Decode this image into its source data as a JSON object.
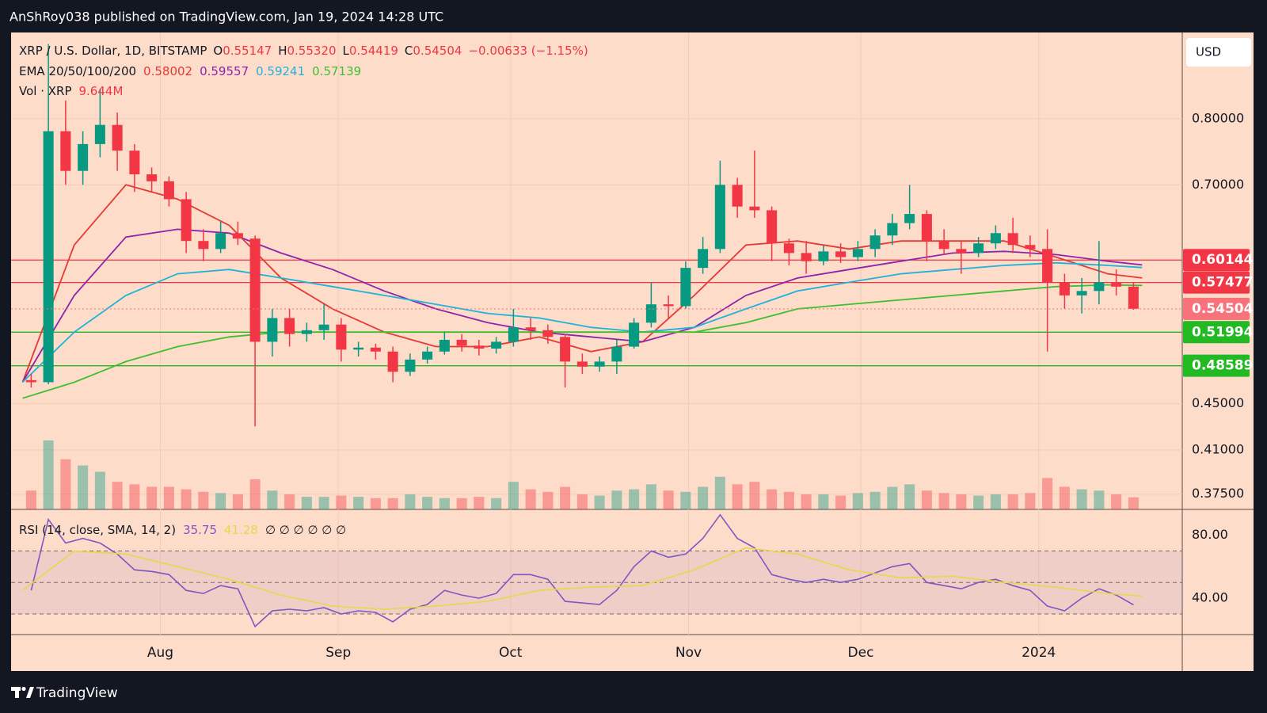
{
  "header": {
    "text": "AnShRoy038 published on TradingView.com, Jan 19, 2024 14:28 UTC"
  },
  "footer": {
    "logo": "TradingView"
  },
  "chart_data": {
    "type": "candlestick",
    "symbol": "XRP / U.S. Dollar, 1D, BITSTAMP",
    "day_ohlc": [
      {
        "key": "O",
        "value": 0.55147
      },
      {
        "key": "H",
        "value": 0.5532,
        "label": "0.55320"
      },
      {
        "key": "L",
        "value": 0.54419
      },
      {
        "key": "C"
      }
    ],
    "change": "−0.00633 (−1.15%)",
    "currency": "USD",
    "log_y": true,
    "grid": true,
    "up_color": "#089981",
    "down_color": "#f23645",
    "xlim": [
      "2023-07-06",
      "2024-01-26"
    ],
    "xticks": [
      {
        "value": "2023-08-01",
        "label": "Aug"
      },
      {
        "value": "2023-09-01",
        "label": "Sep"
      },
      {
        "value": "2023-10-01",
        "label": "Oct"
      },
      {
        "value": "2023-11-01",
        "label": "Nov"
      },
      {
        "value": "2023-12-01",
        "label": "Dec"
      },
      {
        "value": "2024-01-01",
        "label": "2024"
      }
    ],
    "ylim": [
      0.3636,
      0.952
    ],
    "yticks": [
      {
        "value": 0.8,
        "label": "0.80000"
      },
      {
        "value": 0.7,
        "label": "0.70000"
      },
      {
        "value": 0.45,
        "label": "0.45000"
      },
      {
        "value": 0.41,
        "label": "0.41000"
      },
      {
        "value": 0.375,
        "label": "0.37500"
      }
    ],
    "x": [
      "2023-07-08",
      "2023-07-11",
      "2023-07-14",
      "2023-07-17",
      "2023-07-20",
      "2023-07-23",
      "2023-07-26",
      "2023-07-29",
      "2023-08-01",
      "2023-08-04",
      "2023-08-07",
      "2023-08-10",
      "2023-08-13",
      "2023-08-16",
      "2023-08-19",
      "2023-08-22",
      "2023-08-25",
      "2023-08-28",
      "2023-08-31",
      "2023-09-03",
      "2023-09-06",
      "2023-09-09",
      "2023-09-12",
      "2023-09-15",
      "2023-09-18",
      "2023-09-21",
      "2023-09-24",
      "2023-09-27",
      "2023-09-30",
      "2023-10-03",
      "2023-10-06",
      "2023-10-09",
      "2023-10-12",
      "2023-10-15",
      "2023-10-18",
      "2023-10-21",
      "2023-10-24",
      "2023-10-27",
      "2023-10-30",
      "2023-11-02",
      "2023-11-05",
      "2023-11-08",
      "2023-11-11",
      "2023-11-14",
      "2023-11-17",
      "2023-11-20",
      "2023-11-23",
      "2023-11-26",
      "2023-11-29",
      "2023-12-02",
      "2023-12-05",
      "2023-12-08",
      "2023-12-11",
      "2023-12-14",
      "2023-12-17",
      "2023-12-20",
      "2023-12-23",
      "2023-12-26",
      "2023-12-29",
      "2024-01-01",
      "2024-01-04",
      "2024-01-07",
      "2024-01-10",
      "2024-01-13",
      "2024-01-16"
    ],
    "ohlc": [
      [
        0.472,
        0.478,
        0.465,
        0.47
      ],
      [
        0.47,
        0.93,
        0.468,
        0.78
      ],
      [
        0.78,
        0.83,
        0.7,
        0.72
      ],
      [
        0.72,
        0.78,
        0.7,
        0.76
      ],
      [
        0.76,
        0.85,
        0.74,
        0.79
      ],
      [
        0.79,
        0.81,
        0.72,
        0.75
      ],
      [
        0.75,
        0.76,
        0.69,
        0.715
      ],
      [
        0.715,
        0.725,
        0.69,
        0.705
      ],
      [
        0.705,
        0.712,
        0.67,
        0.68
      ],
      [
        0.68,
        0.69,
        0.61,
        0.625
      ],
      [
        0.625,
        0.64,
        0.6,
        0.615
      ],
      [
        0.615,
        0.65,
        0.61,
        0.635
      ],
      [
        0.635,
        0.65,
        0.62,
        0.628
      ],
      [
        0.628,
        0.632,
        0.43,
        0.51
      ],
      [
        0.51,
        0.545,
        0.495,
        0.535
      ],
      [
        0.535,
        0.545,
        0.505,
        0.518
      ],
      [
        0.518,
        0.53,
        0.51,
        0.522
      ],
      [
        0.522,
        0.55,
        0.512,
        0.528
      ],
      [
        0.528,
        0.535,
        0.49,
        0.502
      ],
      [
        0.502,
        0.51,
        0.495,
        0.504
      ],
      [
        0.504,
        0.508,
        0.492,
        0.5
      ],
      [
        0.5,
        0.505,
        0.47,
        0.48
      ],
      [
        0.48,
        0.498,
        0.476,
        0.492
      ],
      [
        0.492,
        0.505,
        0.488,
        0.5
      ],
      [
        0.5,
        0.52,
        0.497,
        0.512
      ],
      [
        0.512,
        0.518,
        0.5,
        0.506
      ],
      [
        0.506,
        0.512,
        0.496,
        0.503
      ],
      [
        0.503,
        0.515,
        0.498,
        0.51
      ],
      [
        0.51,
        0.545,
        0.505,
        0.525
      ],
      [
        0.525,
        0.535,
        0.512,
        0.522
      ],
      [
        0.522,
        0.528,
        0.508,
        0.515
      ],
      [
        0.515,
        0.518,
        0.465,
        0.49
      ],
      [
        0.49,
        0.498,
        0.478,
        0.485
      ],
      [
        0.485,
        0.495,
        0.48,
        0.49
      ],
      [
        0.49,
        0.512,
        0.478,
        0.505
      ],
      [
        0.505,
        0.535,
        0.503,
        0.53
      ],
      [
        0.53,
        0.575,
        0.525,
        0.55
      ],
      [
        0.55,
        0.56,
        0.535,
        0.548
      ],
      [
        0.548,
        0.6,
        0.545,
        0.592
      ],
      [
        0.592,
        0.63,
        0.585,
        0.615
      ],
      [
        0.615,
        0.735,
        0.61,
        0.7
      ],
      [
        0.7,
        0.71,
        0.655,
        0.67
      ],
      [
        0.67,
        0.75,
        0.655,
        0.665
      ],
      [
        0.665,
        0.67,
        0.6,
        0.622
      ],
      [
        0.622,
        0.628,
        0.595,
        0.61
      ],
      [
        0.61,
        0.625,
        0.585,
        0.6
      ],
      [
        0.6,
        0.62,
        0.595,
        0.612
      ],
      [
        0.612,
        0.622,
        0.598,
        0.605
      ],
      [
        0.605,
        0.625,
        0.6,
        0.615
      ],
      [
        0.615,
        0.64,
        0.605,
        0.632
      ],
      [
        0.632,
        0.66,
        0.62,
        0.648
      ],
      [
        0.648,
        0.7,
        0.64,
        0.66
      ],
      [
        0.66,
        0.665,
        0.6,
        0.625
      ],
      [
        0.625,
        0.64,
        0.608,
        0.615
      ],
      [
        0.615,
        0.625,
        0.585,
        0.61
      ],
      [
        0.61,
        0.63,
        0.605,
        0.622
      ],
      [
        0.622,
        0.645,
        0.615,
        0.635
      ],
      [
        0.635,
        0.655,
        0.61,
        0.62
      ],
      [
        0.62,
        0.632,
        0.605,
        0.615
      ],
      [
        0.615,
        0.64,
        0.5,
        0.575
      ],
      [
        0.575,
        0.585,
        0.545,
        0.56
      ],
      [
        0.56,
        0.58,
        0.54,
        0.565
      ],
      [
        0.565,
        0.625,
        0.55,
        0.575
      ],
      [
        0.575,
        0.59,
        0.56,
        0.57
      ],
      [
        0.57,
        0.575,
        0.544,
        0.54504
      ]
    ],
    "volume": {
      "name": "Vol · XRP",
      "label": "9.644M",
      "ylim": [
        0,
        380
      ],
      "values": [
        15,
        55,
        40,
        35,
        30,
        22,
        20,
        18,
        18,
        16,
        14,
        13,
        12,
        24,
        15,
        12,
        10,
        10,
        11,
        10,
        9,
        9,
        12,
        10,
        9,
        9,
        10,
        9,
        22,
        16,
        14,
        18,
        12,
        11,
        15,
        16,
        20,
        15,
        14,
        18,
        26,
        20,
        22,
        16,
        14,
        12,
        12,
        11,
        13,
        14,
        18,
        20,
        15,
        13,
        12,
        11,
        12,
        12,
        13,
        25,
        18,
        16,
        15,
        12,
        9.644
      ]
    },
    "ema": {
      "name": "EMA 20/50/100/200",
      "x": [
        "2023-07-08",
        "2023-07-17",
        "2023-07-26",
        "2023-08-04",
        "2023-08-13",
        "2023-08-22",
        "2023-08-31",
        "2023-09-09",
        "2023-09-18",
        "2023-09-27",
        "2023-10-06",
        "2023-10-15",
        "2023-10-24",
        "2023-11-02",
        "2023-11-11",
        "2023-11-20",
        "2023-11-29",
        "2023-12-08",
        "2023-12-17",
        "2023-12-26",
        "2024-01-04",
        "2024-01-13",
        "2024-01-19"
      ],
      "series": [
        {
          "color": "#e53935",
          "values": [
            0.47,
            0.62,
            0.7,
            0.68,
            0.645,
            0.58,
            0.545,
            0.52,
            0.505,
            0.505,
            0.515,
            0.5,
            0.51,
            0.56,
            0.62,
            0.625,
            0.615,
            0.625,
            0.625,
            0.625,
            0.605,
            0.585,
            0.58002
          ]
        },
        {
          "color": "#8e24aa",
          "values": [
            0.47,
            0.56,
            0.63,
            0.64,
            0.635,
            0.61,
            0.59,
            0.565,
            0.545,
            0.53,
            0.52,
            0.515,
            0.51,
            0.525,
            0.56,
            0.58,
            0.59,
            0.6,
            0.61,
            0.612,
            0.608,
            0.6,
            0.59557
          ]
        },
        {
          "color": "#1fb3d9",
          "values": [
            0.47,
            0.52,
            0.56,
            0.585,
            0.59,
            0.58,
            0.57,
            0.56,
            0.55,
            0.54,
            0.535,
            0.525,
            0.52,
            0.525,
            0.545,
            0.565,
            0.575,
            0.585,
            0.59,
            0.595,
            0.598,
            0.595,
            0.59241
          ]
        },
        {
          "color": "#3dbf2f",
          "values": [
            0.455,
            0.47,
            0.49,
            0.505,
            0.515,
            0.52,
            0.52,
            0.52,
            0.52,
            0.52,
            0.52,
            0.52,
            0.52,
            0.52,
            0.53,
            0.545,
            0.55,
            0.555,
            0.56,
            0.565,
            0.57,
            0.572,
            0.57139
          ]
        }
      ]
    },
    "levels": [
      {
        "value": 0.60144,
        "color": "#f23645"
      },
      {
        "value": 0.57477,
        "color": "#f23645"
      },
      {
        "value": 0.51994,
        "color": "#22b922"
      },
      {
        "value": 0.48589,
        "color": "#22b922"
      }
    ],
    "current_color": "#f7727a",
    "rsi": {
      "name": "RSI (14, close, SMA, 14, 2)",
      "color": "#7e57c2",
      "ylim": [
        16.9,
        96.4
      ],
      "yticks": [
        {
          "value": 80,
          "label": "80.00"
        },
        {
          "value": 40,
          "label": "40.00"
        }
      ],
      "bands": [
        30,
        50,
        70
      ],
      "extra": "∅ ∅ ∅ ∅ ∅ ∅",
      "values": [
        45,
        90,
        75,
        78,
        75,
        68,
        58,
        57,
        55,
        45,
        43,
        48,
        46,
        22,
        32,
        33,
        32,
        34,
        30,
        32,
        31,
        25,
        33,
        36,
        45,
        42,
        40,
        43,
        55,
        55,
        52,
        38,
        37,
        36,
        45,
        60,
        70,
        66,
        68,
        78,
        93,
        78,
        72,
        55,
        52,
        50,
        52,
        50,
        52,
        56,
        60,
        62,
        50,
        48,
        46,
        50,
        52,
        48,
        45,
        35,
        32,
        40,
        46,
        42,
        35.75
      ],
      "sma": {
        "color": "#e6d84a",
        "values": [
          45,
          70,
          68,
          60,
          52,
          42,
          35,
          33,
          35,
          38,
          45,
          47,
          48,
          58,
          72,
          68,
          58,
          53,
          54,
          50,
          47,
          43,
          41.28
        ]
      }
    }
  }
}
